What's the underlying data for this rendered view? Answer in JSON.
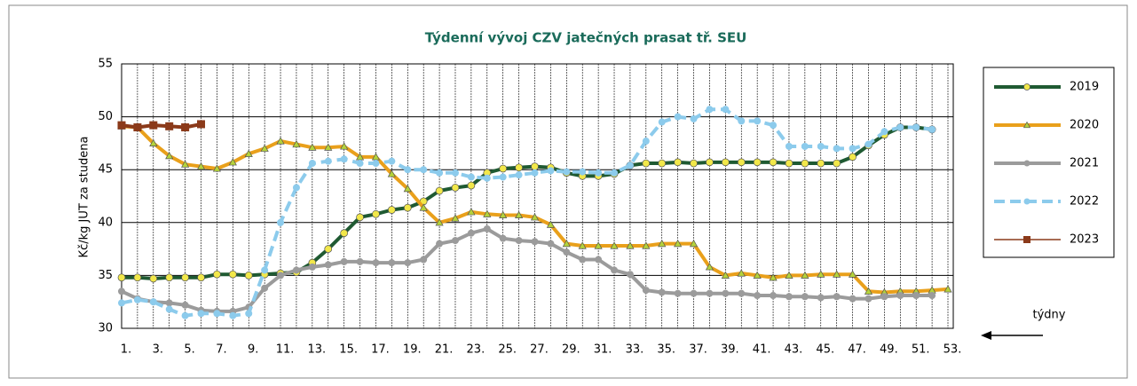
{
  "chart_data": {
    "type": "line",
    "title": "Týdenní vývoj CZV jatečných prasat tř. SEU",
    "y_label": "Kč/kg JUT za studena",
    "annotation": "týdny",
    "categories": [
      "1.",
      null,
      "3.",
      null,
      "5.",
      null,
      "7.",
      null,
      "9.",
      null,
      "11.",
      null,
      "13.",
      null,
      "15.",
      null,
      "17.",
      null,
      "19.",
      null,
      "21.",
      null,
      "23.",
      null,
      "25.",
      null,
      "27.",
      null,
      "29.",
      null,
      "31.",
      null,
      "33.",
      null,
      "35.",
      null,
      "37.",
      null,
      "39.",
      null,
      "41.",
      null,
      "43.",
      null,
      "45.",
      null,
      "47.",
      null,
      "49.",
      null,
      "51.",
      null,
      "53."
    ],
    "ylim": [
      30,
      55
    ],
    "yticks": [
      30,
      35,
      40,
      45,
      50,
      55
    ],
    "grid": true,
    "legend": "right",
    "series": [
      {
        "name": "2019",
        "color": "#1f5a32",
        "marker": "circle",
        "marker_color": "#f2e84a",
        "dashed": false,
        "values": [
          34.8,
          34.8,
          34.7,
          34.8,
          34.8,
          34.8,
          35.1,
          35.1,
          35.0,
          35.1,
          35.2,
          35.3,
          36.2,
          37.5,
          39.0,
          40.5,
          40.8,
          41.2,
          41.4,
          42.0,
          43.0,
          43.3,
          43.5,
          44.7,
          45.1,
          45.2,
          45.3,
          45.2,
          44.7,
          44.4,
          44.4,
          44.6,
          45.4,
          45.6,
          45.6,
          45.7,
          45.6,
          45.7,
          45.7,
          45.7,
          45.7,
          45.7,
          45.6,
          45.6,
          45.6,
          45.6,
          46.2,
          47.3,
          48.3,
          49.0,
          49.0,
          48.8,
          null
        ]
      },
      {
        "name": "2020",
        "color": "#e9a01b",
        "marker": "triangle",
        "marker_color": "#b5d33a",
        "dashed": false,
        "values": [
          49.1,
          49.0,
          47.5,
          46.3,
          45.5,
          45.3,
          45.1,
          45.7,
          46.5,
          47.0,
          47.7,
          47.4,
          47.1,
          47.1,
          47.2,
          46.2,
          46.2,
          44.6,
          43.2,
          41.4,
          40.0,
          40.4,
          41.0,
          40.8,
          40.7,
          40.7,
          40.5,
          39.8,
          38.0,
          37.8,
          37.8,
          37.8,
          37.8,
          37.8,
          38.0,
          38.0,
          38.0,
          35.8,
          35.0,
          35.2,
          35.0,
          34.8,
          35.0,
          35.0,
          35.1,
          35.1,
          35.1,
          33.5,
          33.4,
          33.5,
          33.5,
          33.6,
          33.7
        ]
      },
      {
        "name": "2021",
        "color": "#9b9b9b",
        "marker": "circle",
        "marker_color": "#9b9b9b",
        "dashed": false,
        "values": [
          33.5,
          32.8,
          32.5,
          32.4,
          32.2,
          31.7,
          31.6,
          31.6,
          32.0,
          33.8,
          35.0,
          35.5,
          35.8,
          36.0,
          36.3,
          36.3,
          36.2,
          36.2,
          36.2,
          36.5,
          38.0,
          38.3,
          39.0,
          39.4,
          38.5,
          38.3,
          38.2,
          38.0,
          37.2,
          36.5,
          36.5,
          35.5,
          35.1,
          33.6,
          33.4,
          33.3,
          33.3,
          33.3,
          33.3,
          33.3,
          33.1,
          33.1,
          33.0,
          33.0,
          32.9,
          33.0,
          32.8,
          32.8,
          33.0,
          33.1,
          33.1,
          33.1,
          null
        ]
      },
      {
        "name": "2022",
        "color": "#8ccbec",
        "marker": "circle",
        "marker_color": "#8ccbec",
        "dashed": true,
        "values": [
          32.4,
          32.7,
          32.5,
          31.8,
          31.2,
          31.4,
          31.4,
          31.2,
          31.4,
          35.5,
          40.0,
          43.3,
          45.6,
          45.8,
          46.0,
          45.6,
          45.6,
          45.8,
          45.0,
          45.0,
          44.7,
          44.7,
          44.3,
          44.2,
          44.3,
          44.5,
          44.7,
          44.9,
          44.8,
          44.8,
          44.7,
          44.7,
          45.4,
          47.7,
          49.5,
          50.0,
          49.8,
          50.7,
          50.7,
          49.6,
          49.6,
          49.2,
          47.2,
          47.2,
          47.2,
          47.0,
          47.0,
          47.4,
          48.6,
          49.0,
          49.0,
          48.8,
          null
        ]
      },
      {
        "name": "2023",
        "color": "#8b3a1a",
        "marker": "square",
        "marker_color": "#8b3a1a",
        "dashed": false,
        "values": [
          49.2,
          49.0,
          49.2,
          49.1,
          49.0,
          49.3,
          null,
          null,
          null,
          null,
          null,
          null,
          null,
          null,
          null,
          null,
          null,
          null,
          null,
          null,
          null,
          null,
          null,
          null,
          null,
          null,
          null,
          null,
          null,
          null,
          null,
          null,
          null,
          null,
          null,
          null,
          null,
          null,
          null,
          null,
          null,
          null,
          null,
          null,
          null,
          null,
          null,
          null,
          null,
          null,
          null,
          null,
          null
        ]
      }
    ]
  }
}
